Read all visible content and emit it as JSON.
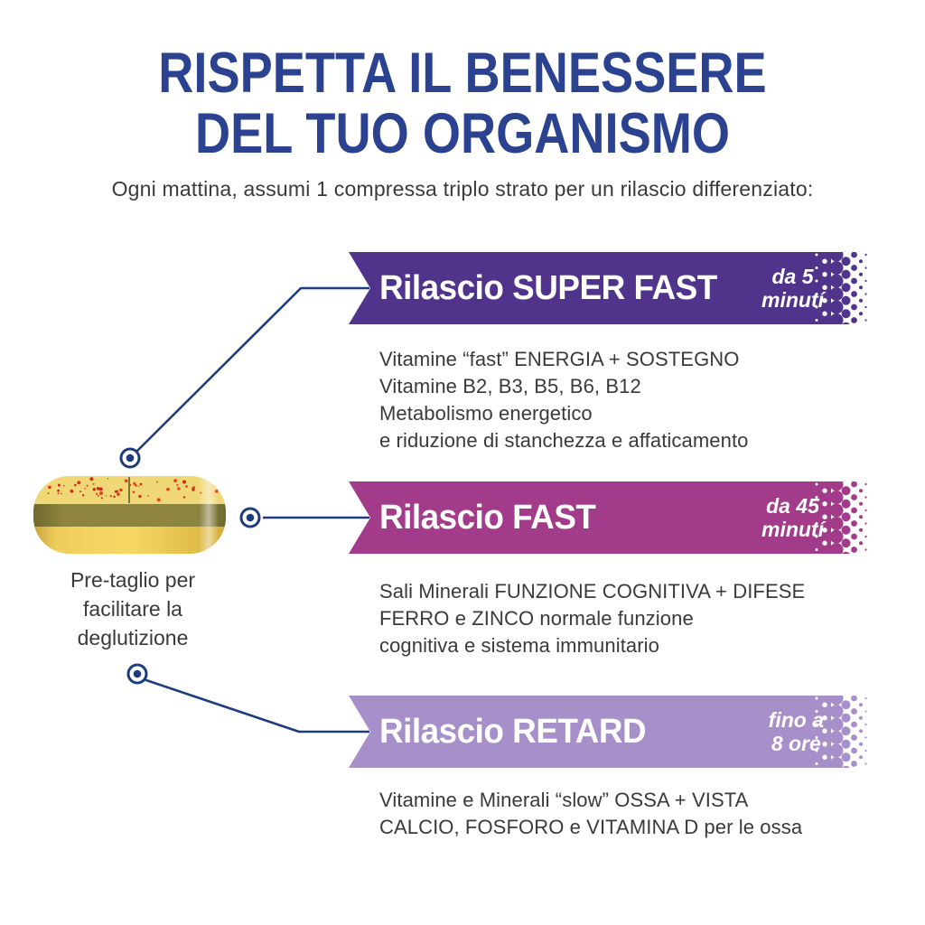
{
  "header": {
    "title_line1": "RISPETTA IL BENESSERE",
    "title_line2": "DEL TUO ORGANISMO",
    "subtitle": "Ogni mattina, assumi 1 compressa triplo strato per un rilascio differenziato:"
  },
  "tablet": {
    "caption_line1": "Pre-taglio per",
    "caption_line2": "facilitare la",
    "caption_line3": "deglutizione"
  },
  "sections": [
    {
      "title": "Rilascio SUPER FAST",
      "badge_line1": "da 5",
      "badge_line2": "minutí",
      "color": "#50338a",
      "lines": [
        "Vitamine “fast” ENERGIA + SOSTEGNO",
        "Vitamine B2, B3, B5, B6, B12",
        "Metabolismo energetico",
        "e riduzione di stanchezza e affaticamento"
      ]
    },
    {
      "title": "Rilascio FAST",
      "badge_line1": "da 45",
      "badge_line2": "minutí",
      "color": "#a33b8b",
      "lines": [
        "Sali Minerali FUNZIONE COGNITIVA + DIFESE",
        "FERRO e ZINCO normale funzione",
        "cognitiva e sistema immunitario"
      ]
    },
    {
      "title": "Rilascio RETARD",
      "badge_line1": "fino a",
      "badge_line2": "8 ore",
      "color": "#a78fc9",
      "lines": [
        "Vitamine e Minerali “slow” OSSA + VISTA",
        "CALCIO, FOSFORO e VITAMINA D per le ossa"
      ]
    }
  ],
  "colors": {
    "heading_blue": "#2b4291",
    "connector_navy": "#1e3c7d",
    "body_text": "#3a3a38",
    "tablet_top": "#f1d876",
    "tablet_band": "#8d8440",
    "tablet_bottom": "#e9c44c",
    "speckle_red": "#d93a1e"
  }
}
